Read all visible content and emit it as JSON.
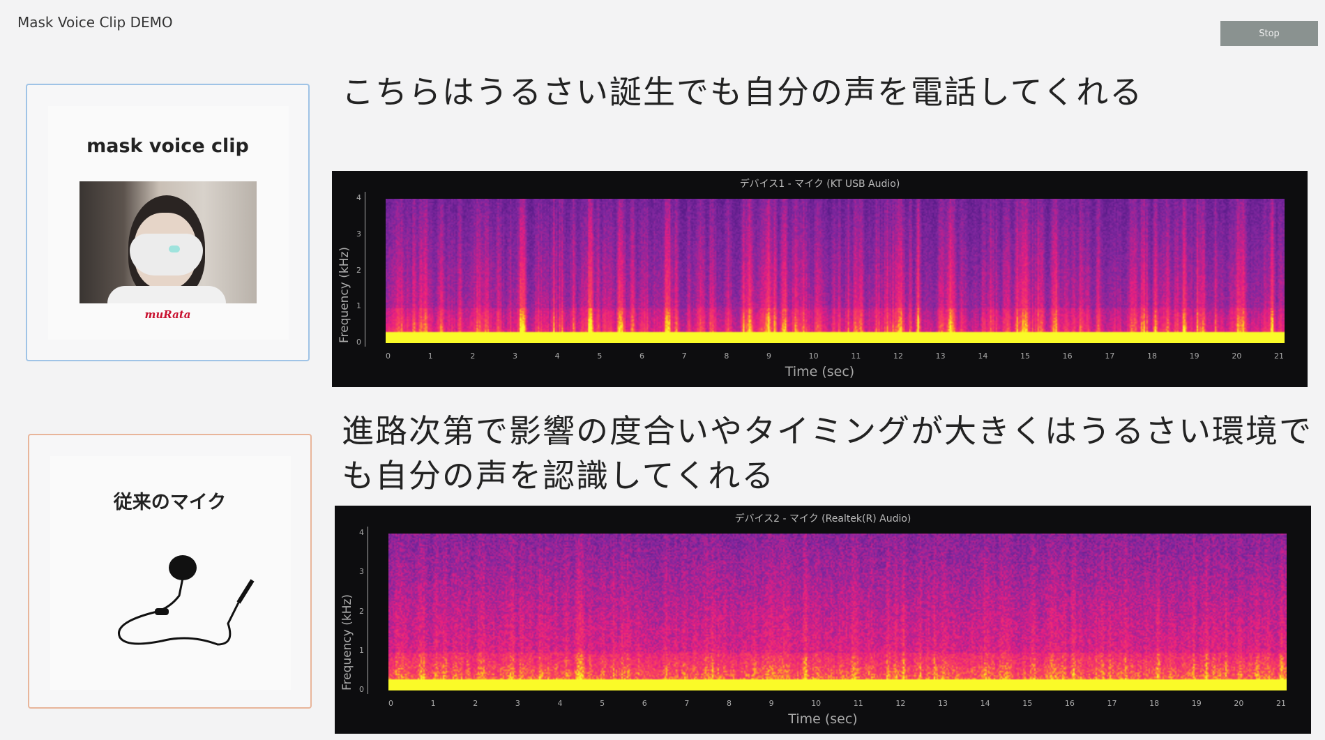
{
  "app": {
    "title": "Mask Voice Clip DEMO",
    "stop_label": "Stop"
  },
  "cards": [
    {
      "title": "mask voice clip",
      "brand": "muRata",
      "image": "woman-wearing-mask-photo",
      "border_color": "#9fc3e6"
    },
    {
      "title": "従来のマイク",
      "image": "lavalier-microphone-photo",
      "border_color": "#e8b59a"
    }
  ],
  "headings": [
    "こちらはうるさい誕生でも自分の声を電話してくれる",
    "進路次第で影響の度合いやタイミングが大きくはうるさい環境でも自分の声を認識してくれる"
  ],
  "chart_data": [
    {
      "type": "heatmap",
      "title": "デバイス1 - マイク (KT USB Audio)",
      "xlabel": "Time (sec)",
      "ylabel": "Frequency (kHz)",
      "xlim": [
        0,
        21
      ],
      "ylim": [
        0,
        4
      ],
      "xticks": [
        "0",
        "1",
        "2",
        "3",
        "4",
        "5",
        "6",
        "7",
        "8",
        "9",
        "10",
        "11",
        "12",
        "13",
        "14",
        "15",
        "16",
        "17",
        "18",
        "19",
        "20",
        "21"
      ],
      "yticks": [
        "0",
        "1",
        "2",
        "3",
        "4"
      ],
      "colormap": "plasma",
      "noise": "low"
    },
    {
      "type": "heatmap",
      "title": "デバイス2 - マイク (Realtek(R) Audio)",
      "xlabel": "Time (sec)",
      "ylabel": "Frequency (kHz)",
      "xlim": [
        0,
        21
      ],
      "ylim": [
        0,
        4
      ],
      "xticks": [
        "0",
        "1",
        "2",
        "3",
        "4",
        "5",
        "6",
        "7",
        "8",
        "9",
        "10",
        "11",
        "12",
        "13",
        "14",
        "15",
        "16",
        "17",
        "18",
        "19",
        "20",
        "21"
      ],
      "yticks": [
        "0",
        "1",
        "2",
        "3",
        "4"
      ],
      "colormap": "plasma",
      "noise": "high"
    }
  ]
}
